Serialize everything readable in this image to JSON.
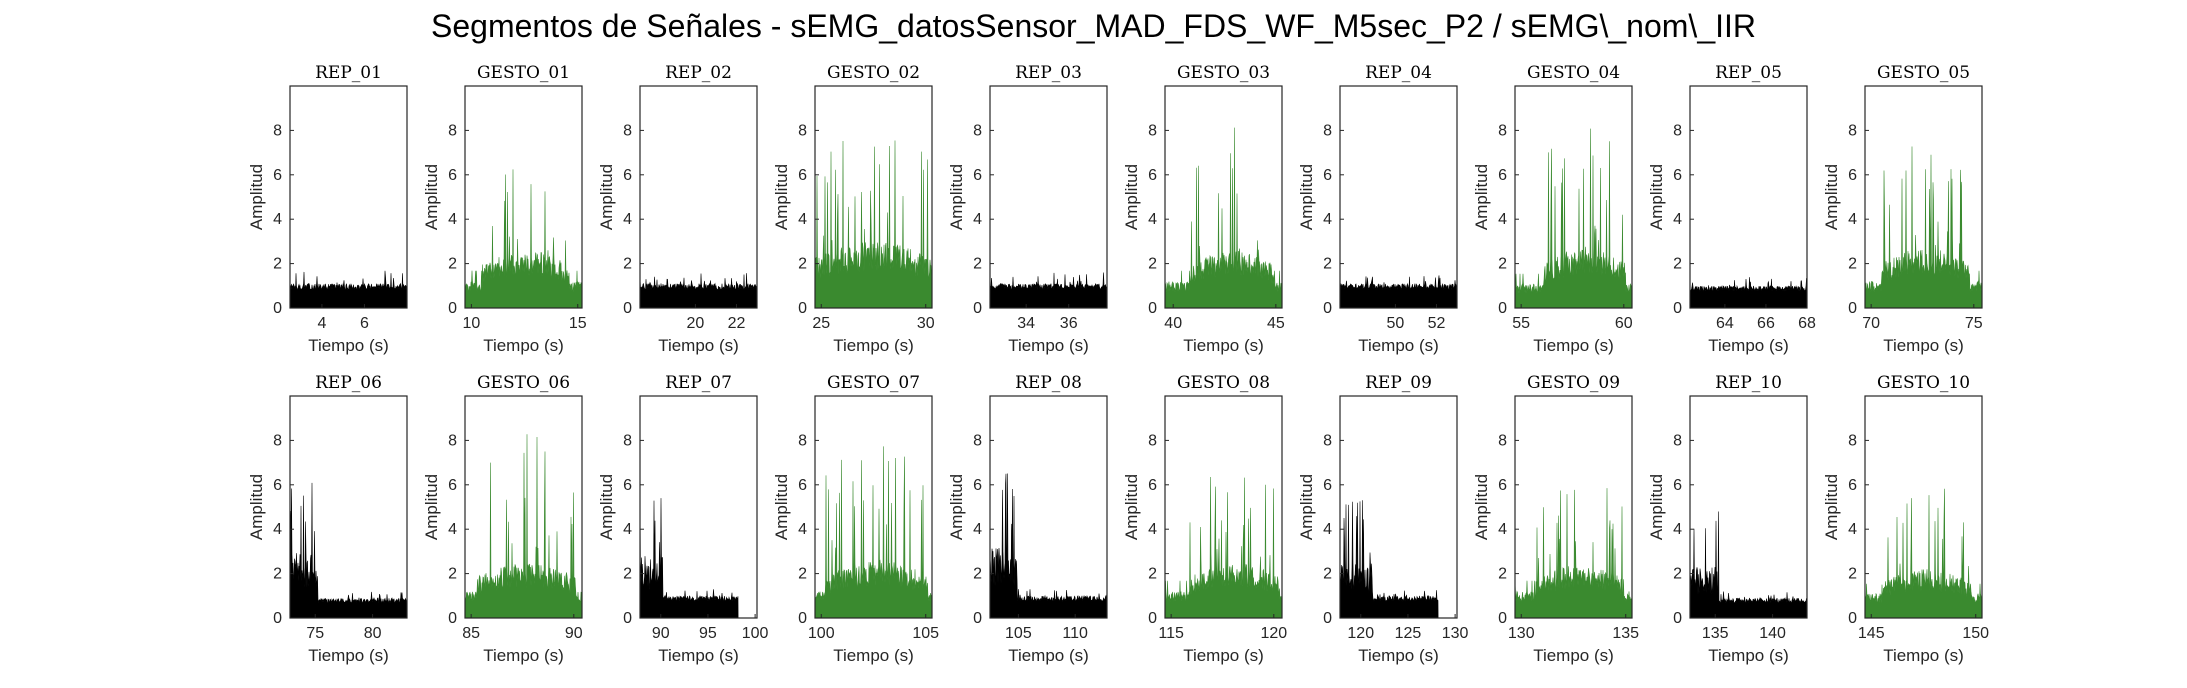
{
  "title": "Segmentos de Señales - sEMG_datosSensor_MAD_FDS_WF_M5sec_P2 / sEMG\\_nom\\_IIR",
  "colors": {
    "rep": "#000000",
    "gesto": "#3a8a2f",
    "axis": "#262626"
  },
  "chart_data": [
    {
      "type": "area",
      "title": "REP_01",
      "xlabel": "Tiempo (s)",
      "ylabel": "Amplitud",
      "xlim": [
        2.5,
        8
      ],
      "ylim": [
        0,
        10
      ],
      "xticks": [
        4,
        6
      ],
      "yticks": [
        0,
        2,
        4,
        6,
        8
      ],
      "series": [
        {
          "kind": "rep",
          "x_start": 2.5,
          "x_end": 8,
          "baseline": 1.1,
          "peak": 1.7
        }
      ]
    },
    {
      "type": "area",
      "title": "GESTO_01",
      "xlabel": "Tiempo (s)",
      "ylabel": "Amplitud",
      "xlim": [
        9.7,
        15.2
      ],
      "ylim": [
        0,
        10
      ],
      "xticks": [
        10,
        15
      ],
      "yticks": [
        0,
        2,
        4,
        6,
        8
      ],
      "series": [
        {
          "kind": "gesto",
          "x_start": 9.7,
          "x_end": 15.2,
          "active_start": 10.5,
          "active_end": 14.6,
          "baseline": 1.2,
          "active_level": 2.6,
          "peak": 6.9
        }
      ]
    },
    {
      "type": "area",
      "title": "REP_02",
      "xlabel": "Tiempo (s)",
      "ylabel": "Amplitud",
      "xlim": [
        17.3,
        23
      ],
      "ylim": [
        0,
        10
      ],
      "xticks": [
        20,
        22
      ],
      "yticks": [
        0,
        2,
        4,
        6,
        8
      ],
      "series": [
        {
          "kind": "rep",
          "x_start": 17.3,
          "x_end": 23,
          "baseline": 1.1,
          "peak": 1.6
        }
      ]
    },
    {
      "type": "area",
      "title": "GESTO_02",
      "xlabel": "Tiempo (s)",
      "ylabel": "Amplitud",
      "xlim": [
        24.7,
        30.3
      ],
      "ylim": [
        0,
        10
      ],
      "xticks": [
        25,
        30
      ],
      "yticks": [
        0,
        2,
        4,
        6,
        8
      ],
      "series": [
        {
          "kind": "gesto",
          "x_start": 24.7,
          "x_end": 30.3,
          "active_start": 24.7,
          "active_end": 30.3,
          "baseline": 1.3,
          "active_level": 3.0,
          "peak": 8.3
        }
      ]
    },
    {
      "type": "area",
      "title": "REP_03",
      "xlabel": "Tiempo (s)",
      "ylabel": "Amplitud",
      "xlim": [
        32.3,
        37.8
      ],
      "ylim": [
        0,
        10
      ],
      "xticks": [
        34,
        36
      ],
      "yticks": [
        0,
        2,
        4,
        6,
        8
      ],
      "series": [
        {
          "kind": "rep",
          "x_start": 32.3,
          "x_end": 37.8,
          "baseline": 1.1,
          "peak": 1.6
        }
      ]
    },
    {
      "type": "area",
      "title": "GESTO_03",
      "xlabel": "Tiempo (s)",
      "ylabel": "Amplitud",
      "xlim": [
        39.6,
        45.3
      ],
      "ylim": [
        0,
        10
      ],
      "xticks": [
        40,
        45
      ],
      "yticks": [
        0,
        2,
        4,
        6,
        8
      ],
      "series": [
        {
          "kind": "gesto",
          "x_start": 39.6,
          "x_end": 45.3,
          "active_start": 40.8,
          "active_end": 44.9,
          "baseline": 1.2,
          "active_level": 2.6,
          "peak": 8.8
        }
      ]
    },
    {
      "type": "area",
      "title": "REP_04",
      "xlabel": "Tiempo (s)",
      "ylabel": "Amplitud",
      "xlim": [
        47.3,
        53
      ],
      "ylim": [
        0,
        10
      ],
      "xticks": [
        50,
        52
      ],
      "yticks": [
        0,
        2,
        4,
        6,
        8
      ],
      "series": [
        {
          "kind": "rep",
          "x_start": 47.3,
          "x_end": 53,
          "baseline": 1.1,
          "peak": 1.5
        }
      ]
    },
    {
      "type": "area",
      "title": "GESTO_04",
      "xlabel": "Tiempo (s)",
      "ylabel": "Amplitud",
      "xlim": [
        54.7,
        60.4
      ],
      "ylim": [
        0,
        10
      ],
      "xticks": [
        55,
        60
      ],
      "yticks": [
        0,
        2,
        4,
        6,
        8
      ],
      "series": [
        {
          "kind": "gesto",
          "x_start": 54.7,
          "x_end": 60.4,
          "active_start": 56.1,
          "active_end": 60.1,
          "baseline": 1.1,
          "active_level": 2.7,
          "peak": 8.3
        }
      ]
    },
    {
      "type": "area",
      "title": "REP_05",
      "xlabel": "Tiempo (s)",
      "ylabel": "Amplitud",
      "xlim": [
        62.3,
        68
      ],
      "ylim": [
        0,
        10
      ],
      "xticks": [
        64,
        66,
        68
      ],
      "yticks": [
        0,
        2,
        4,
        6,
        8
      ],
      "series": [
        {
          "kind": "rep",
          "x_start": 62.3,
          "x_end": 68,
          "baseline": 1.0,
          "peak": 1.4
        }
      ]
    },
    {
      "type": "area",
      "title": "GESTO_05",
      "xlabel": "Tiempo (s)",
      "ylabel": "Amplitud",
      "xlim": [
        69.7,
        75.4
      ],
      "ylim": [
        0,
        10
      ],
      "xticks": [
        70,
        75
      ],
      "yticks": [
        0,
        2,
        4,
        6,
        8
      ],
      "series": [
        {
          "kind": "gesto",
          "x_start": 69.7,
          "x_end": 75.4,
          "active_start": 70.5,
          "active_end": 74.8,
          "baseline": 1.2,
          "active_level": 2.7,
          "peak": 7.6
        }
      ]
    },
    {
      "type": "area",
      "title": "REP_06",
      "xlabel": "Tiempo (s)",
      "ylabel": "Amplitud",
      "xlim": [
        72.8,
        83
      ],
      "ylim": [
        0,
        10
      ],
      "xticks": [
        75,
        80
      ],
      "yticks": [
        0,
        2,
        4,
        6,
        8
      ],
      "series": [
        {
          "kind": "rep",
          "x_start": 72.8,
          "x_end": 83,
          "burst_end": 75.2,
          "burst_level": 3.0,
          "burst_peak": 6.5,
          "baseline": 0.9,
          "peak": 1.2
        }
      ]
    },
    {
      "type": "area",
      "title": "GESTO_06",
      "xlabel": "Tiempo (s)",
      "ylabel": "Amplitud",
      "xlim": [
        84.7,
        90.4
      ],
      "ylim": [
        0,
        10
      ],
      "xticks": [
        85,
        90
      ],
      "yticks": [
        0,
        2,
        4,
        6,
        8
      ],
      "series": [
        {
          "kind": "gesto",
          "x_start": 84.7,
          "x_end": 90.4,
          "active_start": 85.3,
          "active_end": 90.1,
          "baseline": 1.2,
          "active_level": 2.5,
          "peak": 8.5
        }
      ]
    },
    {
      "type": "area",
      "title": "REP_07",
      "xlabel": "Tiempo (s)",
      "ylabel": "Amplitud",
      "xlim": [
        87.8,
        100.2
      ],
      "ylim": [
        0,
        10
      ],
      "xticks": [
        90,
        95,
        100
      ],
      "yticks": [
        0,
        2,
        4,
        6,
        8
      ],
      "series": [
        {
          "kind": "rep",
          "x_start": 87.8,
          "x_end": 98.2,
          "burst_end": 90.2,
          "burst_level": 2.8,
          "burst_peak": 6.9,
          "baseline": 1.0,
          "peak": 1.3
        }
      ]
    },
    {
      "type": "area",
      "title": "GESTO_07",
      "xlabel": "Tiempo (s)",
      "ylabel": "Amplitud",
      "xlim": [
        99.7,
        105.3
      ],
      "ylim": [
        0,
        10
      ],
      "xticks": [
        100,
        105
      ],
      "yticks": [
        0,
        2,
        4,
        6,
        8
      ],
      "series": [
        {
          "kind": "gesto",
          "x_start": 99.7,
          "x_end": 105.3,
          "active_start": 100.2,
          "active_end": 105.1,
          "baseline": 1.2,
          "active_level": 2.6,
          "peak": 8.5
        }
      ]
    },
    {
      "type": "area",
      "title": "REP_08",
      "xlabel": "Tiempo (s)",
      "ylabel": "Amplitud",
      "xlim": [
        102.5,
        112.8
      ],
      "ylim": [
        0,
        10
      ],
      "xticks": [
        105,
        110
      ],
      "yticks": [
        0,
        2,
        4,
        6,
        8
      ],
      "series": [
        {
          "kind": "rep",
          "x_start": 102.5,
          "x_end": 112.8,
          "burst_end": 104.9,
          "burst_level": 3.2,
          "burst_peak": 6.7,
          "baseline": 1.0,
          "peak": 1.3
        }
      ]
    },
    {
      "type": "area",
      "title": "GESTO_08",
      "xlabel": "Tiempo (s)",
      "ylabel": "Amplitud",
      "xlim": [
        114.7,
        120.4
      ],
      "ylim": [
        0,
        10
      ],
      "xticks": [
        115,
        120
      ],
      "yticks": [
        0,
        2,
        4,
        6,
        8
      ],
      "series": [
        {
          "kind": "gesto",
          "x_start": 114.7,
          "x_end": 120.4,
          "active_start": 115.9,
          "active_end": 120.3,
          "baseline": 1.2,
          "active_level": 2.5,
          "peak": 7.1
        }
      ]
    },
    {
      "type": "area",
      "title": "REP_09",
      "xlabel": "Tiempo (s)",
      "ylabel": "Amplitud",
      "xlim": [
        117.8,
        130.2
      ],
      "ylim": [
        0,
        10
      ],
      "xticks": [
        120,
        125,
        130
      ],
      "yticks": [
        0,
        2,
        4,
        6,
        8
      ],
      "series": [
        {
          "kind": "rep",
          "x_start": 117.8,
          "x_end": 128.2,
          "burst_end": 121.2,
          "burst_level": 2.5,
          "burst_peak": 5.5,
          "baseline": 1.0,
          "peak": 1.3
        }
      ]
    },
    {
      "type": "area",
      "title": "GESTO_09",
      "xlabel": "Tiempo (s)",
      "ylabel": "Amplitud",
      "xlim": [
        129.7,
        135.3
      ],
      "ylim": [
        0,
        10
      ],
      "xticks": [
        130,
        135
      ],
      "yticks": [
        0,
        2,
        4,
        6,
        8
      ],
      "series": [
        {
          "kind": "gesto",
          "x_start": 129.7,
          "x_end": 135.3,
          "active_start": 130.7,
          "active_end": 134.9,
          "baseline": 1.2,
          "active_level": 2.4,
          "peak": 6.4
        }
      ]
    },
    {
      "type": "area",
      "title": "REP_10",
      "xlabel": "Tiempo (s)",
      "ylabel": "Amplitud",
      "xlim": [
        132.8,
        143
      ],
      "ylim": [
        0,
        10
      ],
      "xticks": [
        135,
        140
      ],
      "yticks": [
        0,
        2,
        4,
        6,
        8
      ],
      "series": [
        {
          "kind": "rep",
          "x_start": 132.8,
          "x_end": 143,
          "burst_end": 135.3,
          "burst_level": 2.3,
          "burst_peak": 5.2,
          "baseline": 0.9,
          "peak": 1.2
        }
      ]
    },
    {
      "type": "area",
      "title": "GESTO_10",
      "xlabel": "Tiempo (s)",
      "ylabel": "Amplitud",
      "xlim": [
        144.7,
        150.3
      ],
      "ylim": [
        0,
        10
      ],
      "xticks": [
        145,
        150
      ],
      "yticks": [
        0,
        2,
        4,
        6,
        8
      ],
      "series": [
        {
          "kind": "gesto",
          "x_start": 144.7,
          "x_end": 150.3,
          "active_start": 145.5,
          "active_end": 149.8,
          "baseline": 1.1,
          "active_level": 2.2,
          "peak": 6.0
        }
      ]
    }
  ]
}
